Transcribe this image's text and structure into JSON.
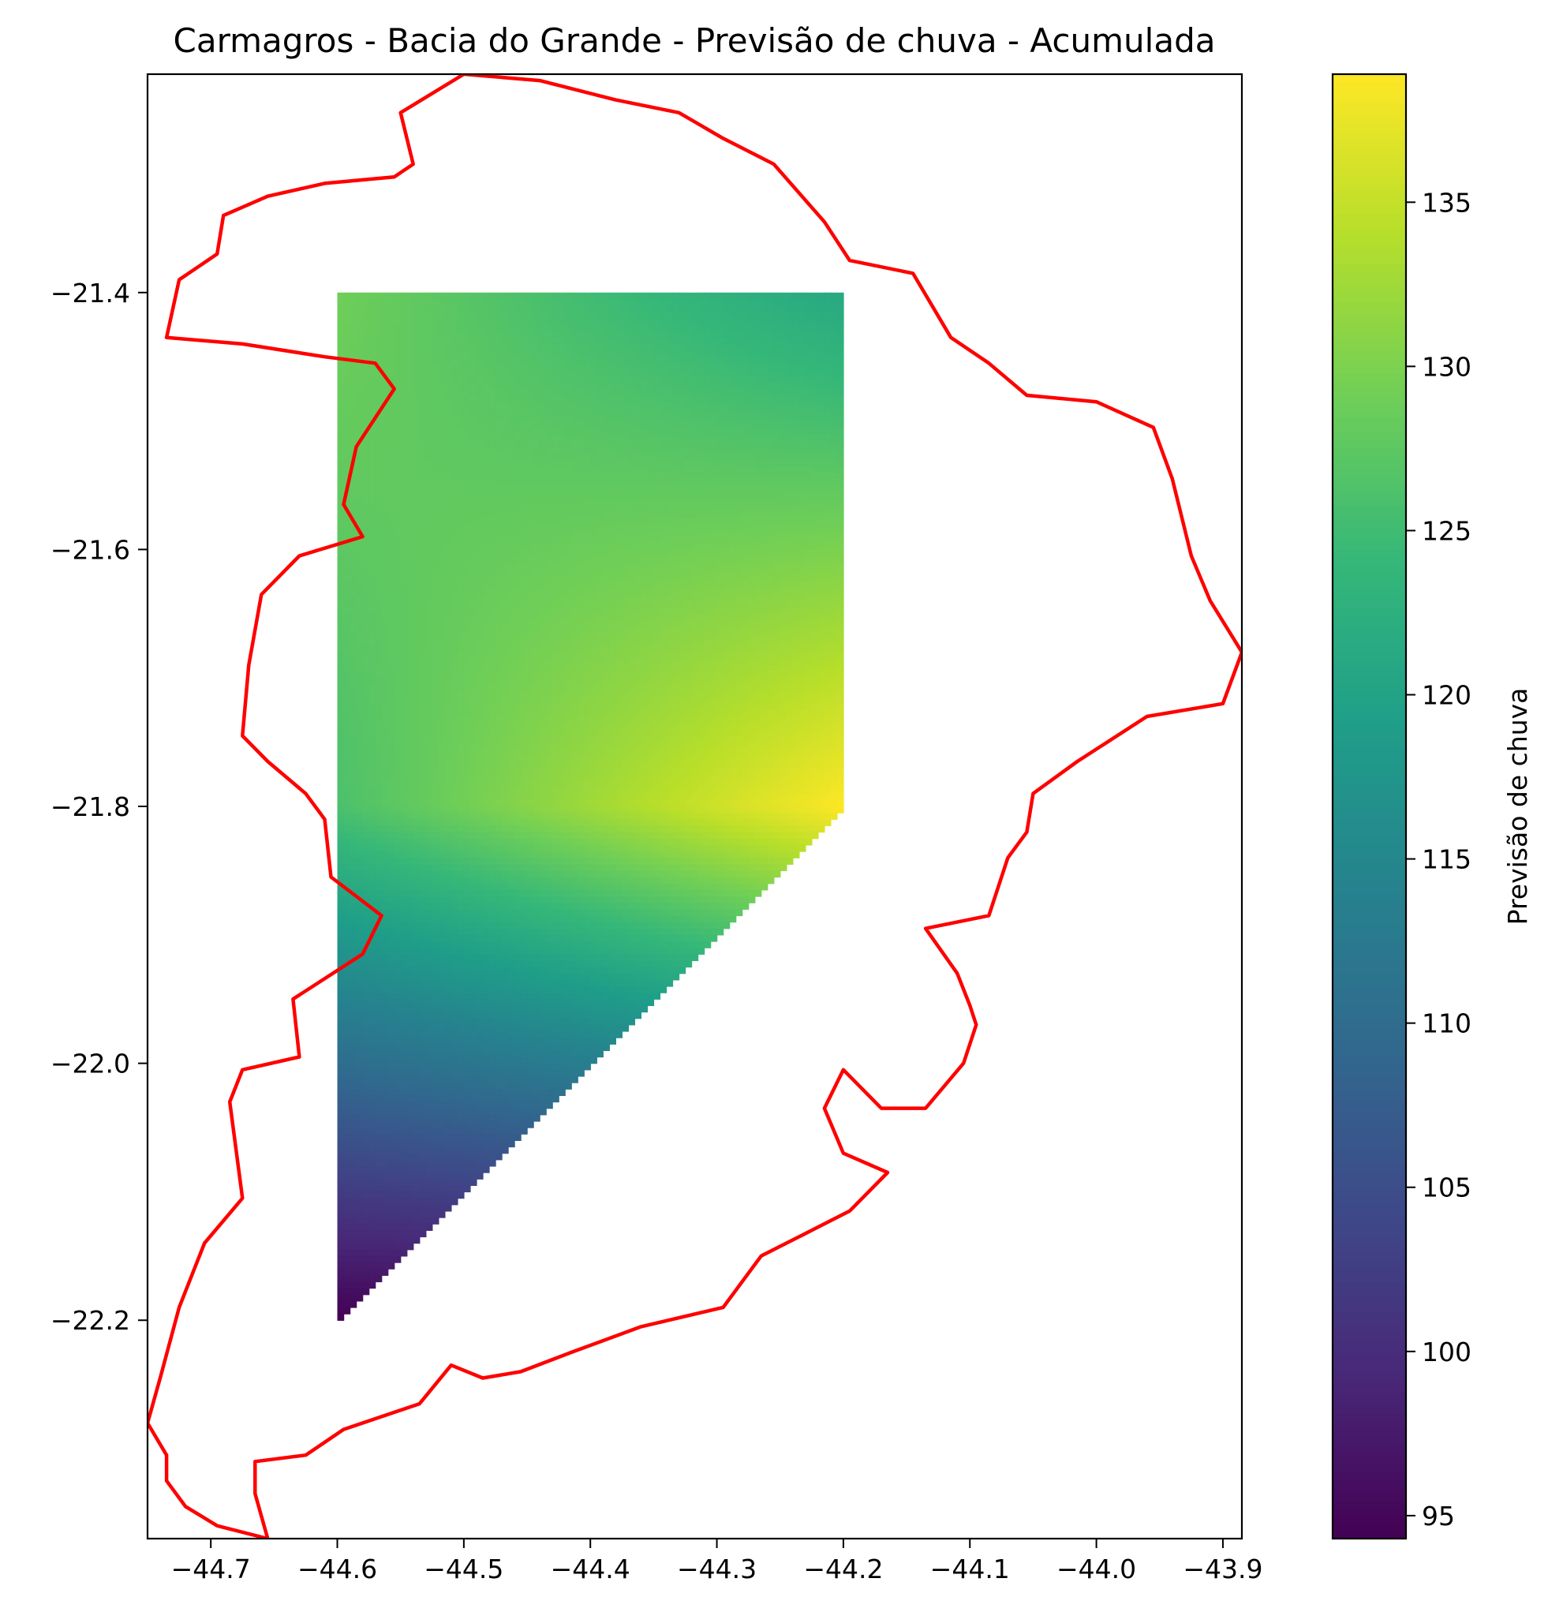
{
  "chart_data": {
    "type": "heatmap",
    "title": "Carmagros - Bacia do Grande - Previsão de chuva - Acumulada",
    "xlabel": "",
    "ylabel": "",
    "xlim": [
      -44.75,
      -43.885
    ],
    "ylim": [
      -22.37,
      -21.23
    ],
    "x_ticks": [
      -44.7,
      -44.6,
      -44.5,
      -44.4,
      -44.3,
      -44.2,
      -44.1,
      -44.0,
      -43.9
    ],
    "x_tick_labels": [
      "−44.7",
      "−44.6",
      "−44.5",
      "−44.4",
      "−44.3",
      "−44.2",
      "−44.1",
      "−44.0",
      "−43.9"
    ],
    "y_ticks": [
      -21.4,
      -21.6,
      -21.8,
      -22.0,
      -22.2
    ],
    "y_tick_labels": [
      "−21.4",
      "−21.6",
      "−21.8",
      "−22.0",
      "−22.2"
    ],
    "colormap": "viridis",
    "colorbar": {
      "label": "Previsão de chuva",
      "min": 94.3,
      "max": 138.9,
      "ticks": [
        95,
        100,
        105,
        110,
        115,
        120,
        125,
        130,
        135
      ],
      "tick_labels": [
        "95",
        "100",
        "105",
        "110",
        "115",
        "120",
        "125",
        "130",
        "135"
      ]
    },
    "field_polygon": [
      [
        -44.6,
        -21.4
      ],
      [
        -44.2,
        -21.4
      ],
      [
        -44.2,
        -21.8
      ],
      [
        -44.6,
        -22.2
      ]
    ],
    "grid_points": [
      {
        "lon": -44.6,
        "lat": -21.4,
        "value": 129
      },
      {
        "lon": -44.2,
        "lat": -21.4,
        "value": 121
      },
      {
        "lon": -44.6,
        "lat": -21.8,
        "value": 126
      },
      {
        "lon": -44.2,
        "lat": -21.8,
        "value": 138.9
      },
      {
        "lon": -44.6,
        "lat": -22.2,
        "value": 94.3
      }
    ],
    "basin_outline_color": "#ff0000",
    "basin_outline": [
      [
        -44.55,
        -21.26
      ],
      [
        -44.54,
        -21.3
      ],
      [
        -44.555,
        -21.31
      ],
      [
        -44.61,
        -21.315
      ],
      [
        -44.655,
        -21.325
      ],
      [
        -44.69,
        -21.34
      ],
      [
        -44.695,
        -21.37
      ],
      [
        -44.725,
        -21.39
      ],
      [
        -44.735,
        -21.435
      ],
      [
        -44.675,
        -21.44
      ],
      [
        -44.61,
        -21.45
      ],
      [
        -44.57,
        -21.455
      ],
      [
        -44.555,
        -21.475
      ],
      [
        -44.585,
        -21.52
      ],
      [
        -44.595,
        -21.565
      ],
      [
        -44.58,
        -21.59
      ],
      [
        -44.63,
        -21.605
      ],
      [
        -44.66,
        -21.635
      ],
      [
        -44.67,
        -21.69
      ],
      [
        -44.675,
        -21.745
      ],
      [
        -44.655,
        -21.765
      ],
      [
        -44.625,
        -21.79
      ],
      [
        -44.61,
        -21.81
      ],
      [
        -44.605,
        -21.855
      ],
      [
        -44.565,
        -21.885
      ],
      [
        -44.58,
        -21.915
      ],
      [
        -44.635,
        -21.95
      ],
      [
        -44.63,
        -21.995
      ],
      [
        -44.675,
        -22.005
      ],
      [
        -44.685,
        -22.03
      ],
      [
        -44.675,
        -22.105
      ],
      [
        -44.705,
        -22.14
      ],
      [
        -44.725,
        -22.19
      ],
      [
        -44.74,
        -22.245
      ],
      [
        -44.75,
        -22.28
      ],
      [
        -44.735,
        -22.305
      ],
      [
        -44.735,
        -22.325
      ],
      [
        -44.72,
        -22.345
      ],
      [
        -44.695,
        -22.36
      ],
      [
        -44.655,
        -22.37
      ],
      [
        -44.665,
        -22.335
      ],
      [
        -44.665,
        -22.31
      ],
      [
        -44.625,
        -22.305
      ],
      [
        -44.595,
        -22.285
      ],
      [
        -44.535,
        -22.265
      ],
      [
        -44.51,
        -22.235
      ],
      [
        -44.485,
        -22.245
      ],
      [
        -44.455,
        -22.24
      ],
      [
        -44.415,
        -22.225
      ],
      [
        -44.36,
        -22.205
      ],
      [
        -44.295,
        -22.19
      ],
      [
        -44.265,
        -22.15
      ],
      [
        -44.225,
        -22.13
      ],
      [
        -44.195,
        -22.115
      ],
      [
        -44.165,
        -22.085
      ],
      [
        -44.2,
        -22.07
      ],
      [
        -44.215,
        -22.035
      ],
      [
        -44.2,
        -22.005
      ],
      [
        -44.17,
        -22.035
      ],
      [
        -44.135,
        -22.035
      ],
      [
        -44.105,
        -22.0
      ],
      [
        -44.095,
        -21.97
      ],
      [
        -44.1,
        -21.955
      ],
      [
        -44.11,
        -21.93
      ],
      [
        -44.135,
        -21.895
      ],
      [
        -44.085,
        -21.885
      ],
      [
        -44.07,
        -21.84
      ],
      [
        -44.055,
        -21.82
      ],
      [
        -44.05,
        -21.79
      ],
      [
        -44.015,
        -21.765
      ],
      [
        -43.96,
        -21.73
      ],
      [
        -43.9,
        -21.72
      ],
      [
        -43.885,
        -21.68
      ],
      [
        -43.91,
        -21.64
      ],
      [
        -43.925,
        -21.605
      ],
      [
        -43.94,
        -21.545
      ],
      [
        -43.955,
        -21.505
      ],
      [
        -44.0,
        -21.485
      ],
      [
        -44.055,
        -21.48
      ],
      [
        -44.085,
        -21.455
      ],
      [
        -44.115,
        -21.435
      ],
      [
        -44.145,
        -21.385
      ],
      [
        -44.195,
        -21.375
      ],
      [
        -44.215,
        -21.345
      ],
      [
        -44.255,
        -21.3
      ],
      [
        -44.295,
        -21.28
      ],
      [
        -44.33,
        -21.26
      ],
      [
        -44.38,
        -21.25
      ],
      [
        -44.44,
        -21.235
      ],
      [
        -44.5,
        -21.23
      ]
    ]
  }
}
